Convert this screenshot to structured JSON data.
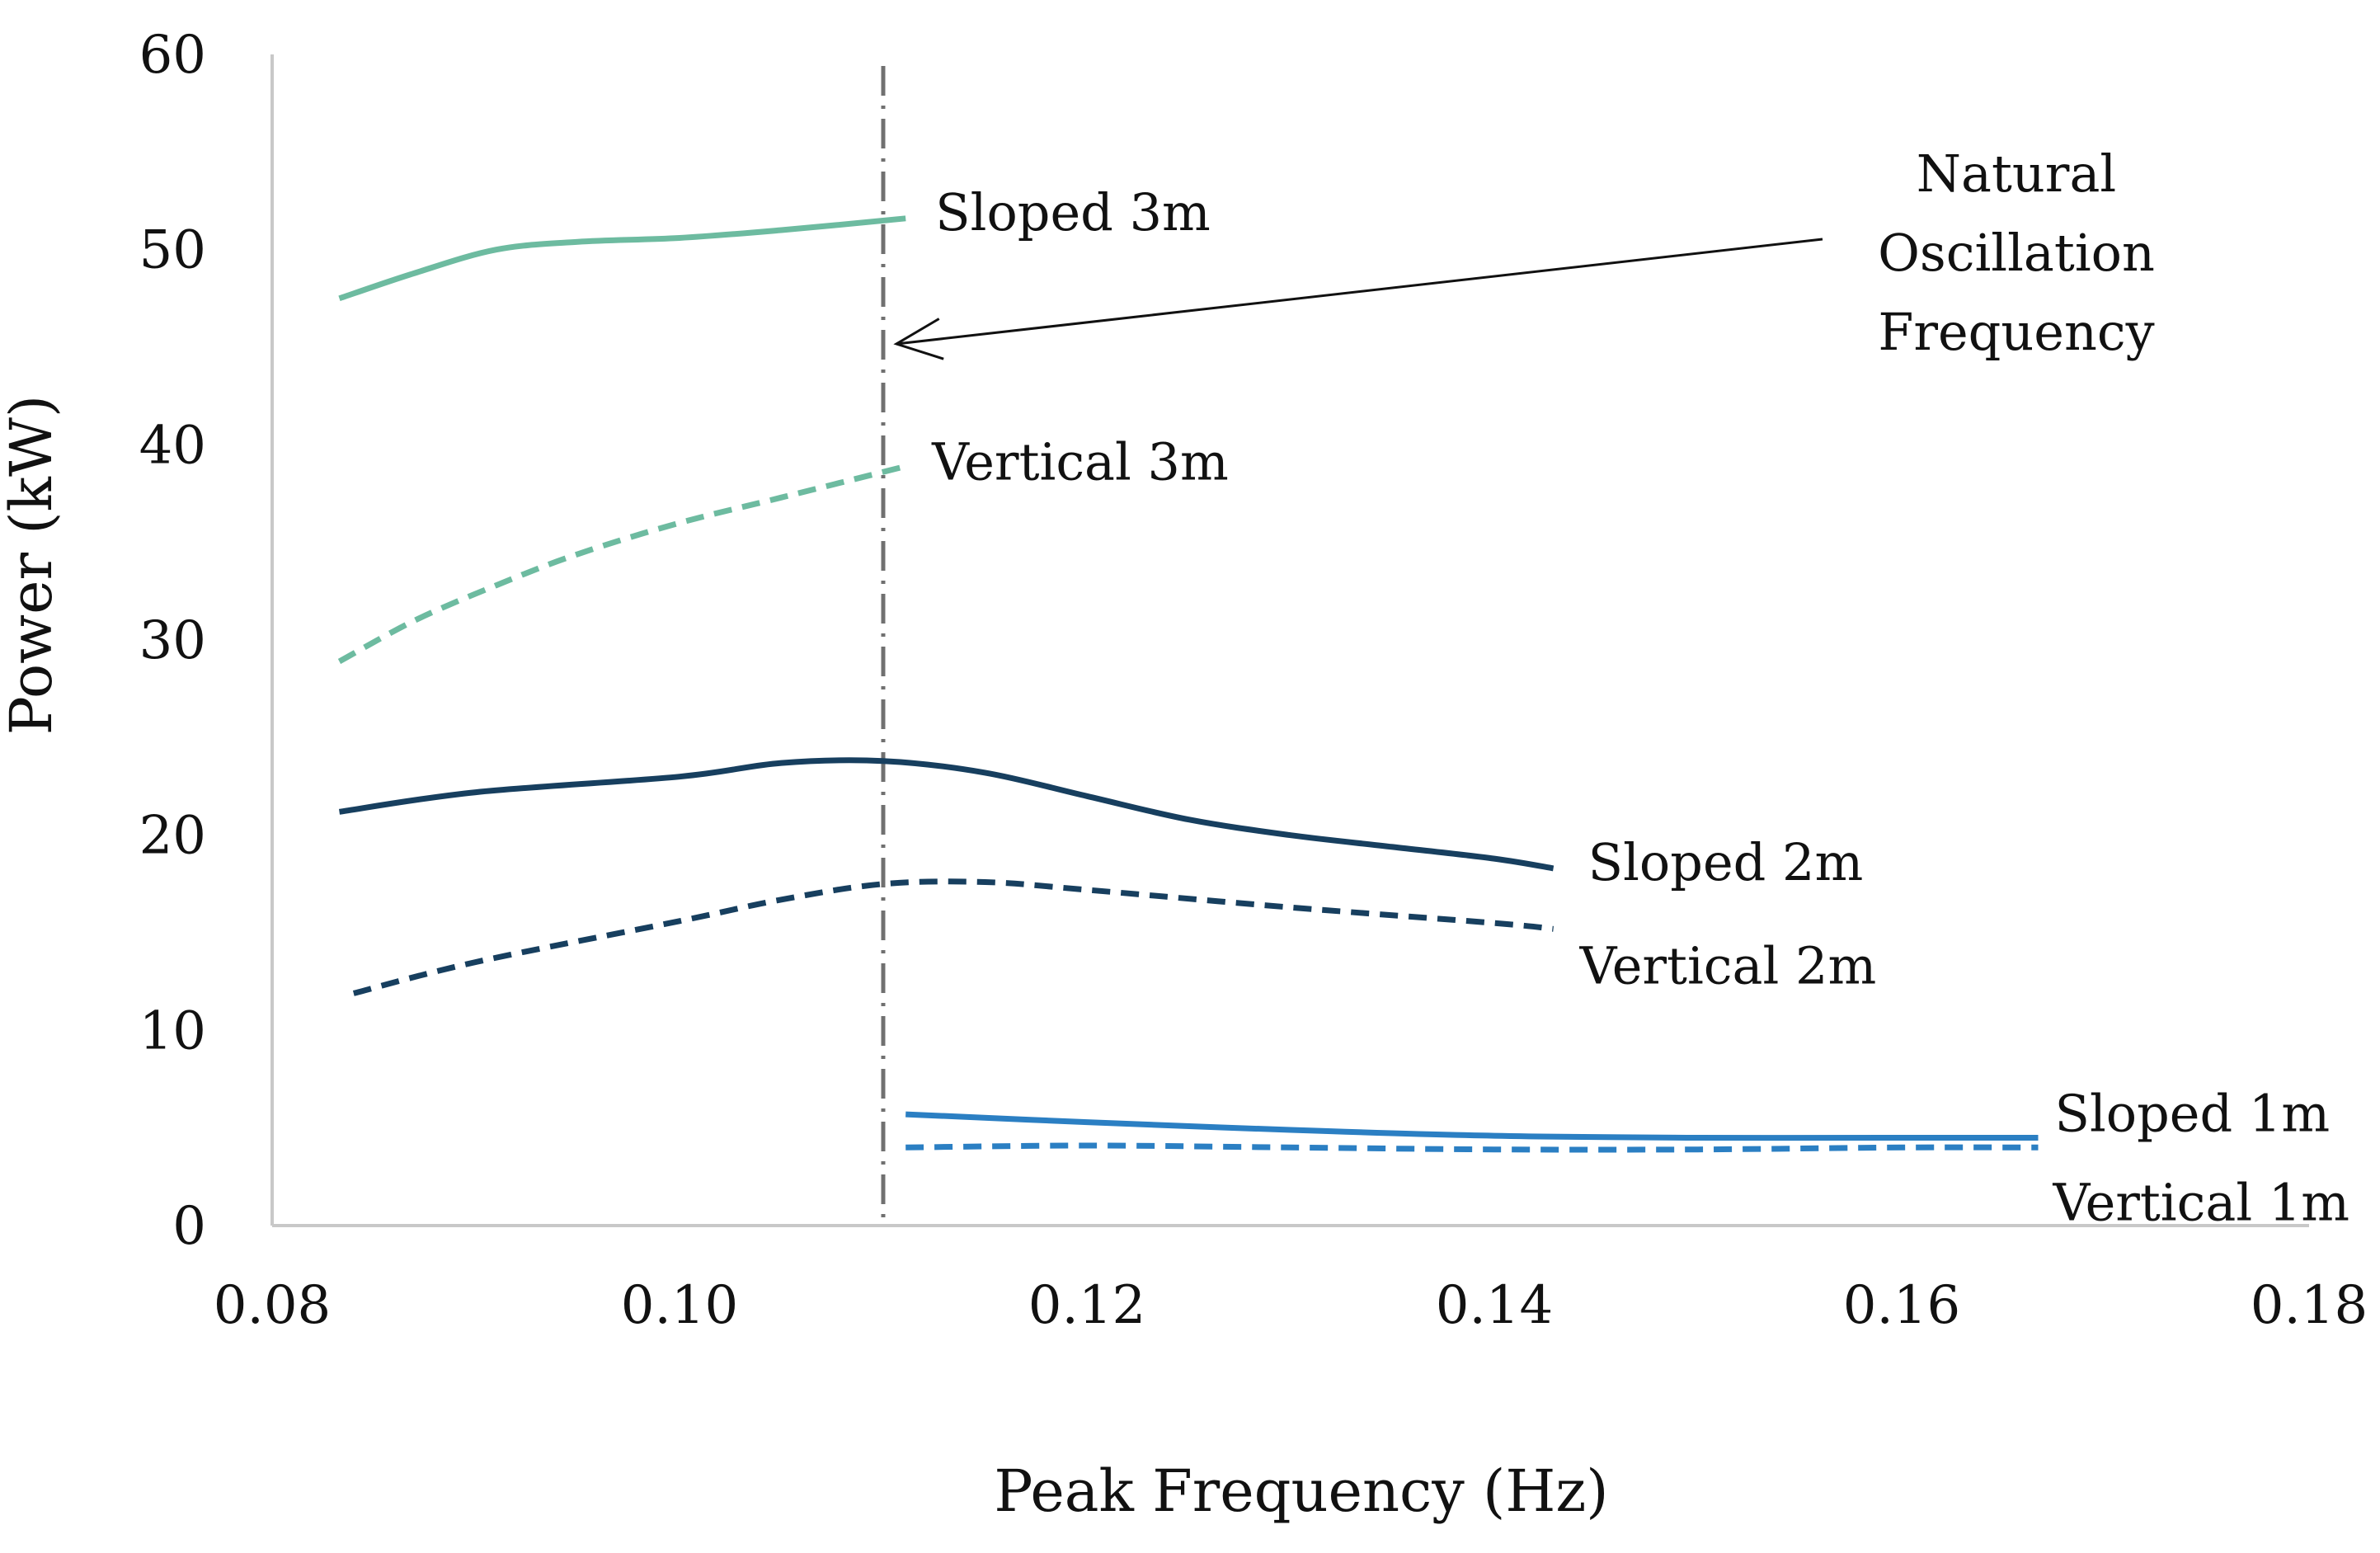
{
  "chart_data": {
    "type": "line",
    "title": "",
    "xlabel": "Peak Frequency (Hz)",
    "ylabel": "Power (kW)",
    "xlim": [
      0.08,
      0.18
    ],
    "ylim": [
      0,
      60
    ],
    "x_ticks": [
      0.08,
      0.1,
      0.12,
      0.14,
      0.16,
      0.18
    ],
    "x_tick_labels": [
      "0.08",
      "0.10",
      "0.12",
      "0.14",
      "0.16",
      "0.18"
    ],
    "y_ticks": [
      0,
      10,
      20,
      30,
      40,
      50,
      60
    ],
    "y_tick_labels": [
      "0",
      "10",
      "20",
      "30",
      "40",
      "50",
      "60"
    ],
    "grid": false,
    "legend": "inline labels at line ends",
    "series": [
      {
        "name": "Sloped 3m",
        "color": "#6dbba0",
        "dash": "solid",
        "x": [
          0.0833,
          0.087,
          0.091,
          0.095,
          0.1,
          0.105,
          0.1111
        ],
        "values": [
          47.5,
          48.8,
          50.0,
          50.4,
          50.6,
          51.0,
          51.6
        ]
      },
      {
        "name": "Vertical 3m",
        "color": "#6dbba0",
        "dash": "dashed",
        "x": [
          0.0833,
          0.087,
          0.091,
          0.095,
          0.1,
          0.105,
          0.1111
        ],
        "values": [
          28.9,
          31.0,
          32.8,
          34.4,
          36.0,
          37.3,
          38.9
        ]
      },
      {
        "name": "Sloped 2m",
        "color": "#173f5f",
        "dash": "solid",
        "x": [
          0.0833,
          0.09,
          0.1,
          0.105,
          0.11,
          0.115,
          0.12,
          0.125,
          0.13,
          0.135,
          0.14,
          0.1429
        ],
        "values": [
          21.2,
          22.2,
          23.0,
          23.7,
          23.8,
          23.2,
          22.0,
          20.8,
          20.0,
          19.4,
          18.8,
          18.3
        ]
      },
      {
        "name": "Vertical 2m",
        "color": "#173f5f",
        "dash": "dashed",
        "x": [
          0.084,
          0.09,
          0.1,
          0.105,
          0.11,
          0.115,
          0.12,
          0.13,
          0.14,
          0.1429
        ],
        "values": [
          11.9,
          13.5,
          15.6,
          16.7,
          17.5,
          17.6,
          17.2,
          16.3,
          15.5,
          15.2
        ]
      },
      {
        "name": "Sloped 1m",
        "color": "#2b7fc3",
        "dash": "solid",
        "x": [
          0.1111,
          0.12,
          0.13,
          0.14,
          0.15,
          0.16,
          0.1667
        ],
        "values": [
          5.7,
          5.3,
          4.9,
          4.6,
          4.5,
          4.5,
          4.5
        ]
      },
      {
        "name": "Vertical 1m",
        "color": "#2b7fc3",
        "dash": "dashed",
        "x": [
          0.1111,
          0.12,
          0.13,
          0.14,
          0.15,
          0.16,
          0.1667
        ],
        "values": [
          4.0,
          4.1,
          4.0,
          3.9,
          3.9,
          4.0,
          4.0
        ]
      }
    ],
    "reference_line": {
      "x": 0.11,
      "style": "dash-dot",
      "color": "#707070"
    },
    "annotation": {
      "lines": [
        "Natural",
        "Oscillation",
        "Frequency"
      ],
      "arrow_to": [
        0.11,
        45
      ]
    }
  }
}
